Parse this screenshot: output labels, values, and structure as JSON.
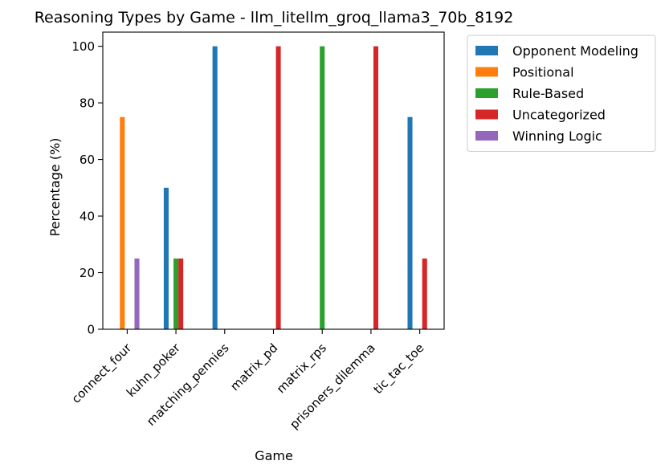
{
  "chart_data": {
    "type": "bar",
    "title": "Reasoning Types by Game - llm_litellm_groq_llama3_70b_8192",
    "xlabel": "Game",
    "ylabel": "Percentage (%)",
    "ylim": [
      0,
      105
    ],
    "yticks": [
      0,
      20,
      40,
      60,
      80,
      100
    ],
    "grid": false,
    "legend_position": "outside right, top",
    "categories": [
      "connect_four",
      "kuhn_poker",
      "matching_pennies",
      "matrix_pd",
      "matrix_rps",
      "prisoners_dilemma",
      "tic_tac_toe"
    ],
    "series": [
      {
        "name": "Opponent Modeling",
        "color": "#1f77b4",
        "values": [
          0,
          50,
          100,
          0,
          0,
          0,
          75
        ]
      },
      {
        "name": "Positional",
        "color": "#ff7f0e",
        "values": [
          75,
          0,
          0,
          0,
          0,
          0,
          0
        ]
      },
      {
        "name": "Rule-Based",
        "color": "#2ca02c",
        "values": [
          0,
          25,
          0,
          0,
          100,
          0,
          0
        ]
      },
      {
        "name": "Uncategorized",
        "color": "#d62728",
        "values": [
          0,
          25,
          0,
          100,
          0,
          100,
          25
        ]
      },
      {
        "name": "Winning Logic",
        "color": "#9467bd",
        "values": [
          25,
          0,
          0,
          0,
          0,
          0,
          0
        ]
      }
    ]
  }
}
